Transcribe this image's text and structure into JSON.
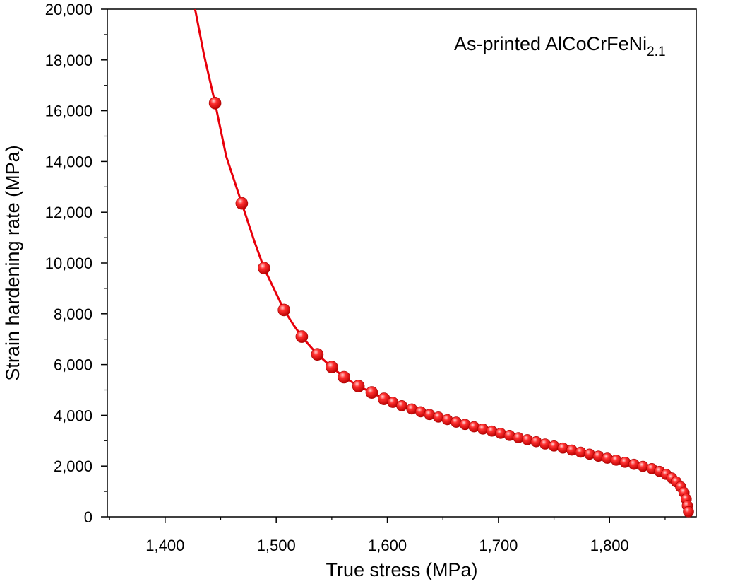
{
  "chart_data": {
    "type": "line",
    "title": "",
    "xlabel": "True stress (MPa)",
    "ylabel": "Strain hardening rate (MPa)",
    "annotation": {
      "text": "As-printed AlCoCrFeNi",
      "subscript": "2.1"
    },
    "xlim": [
      1348,
      1878
    ],
    "ylim": [
      0,
      20000
    ],
    "x_ticks": [
      1400,
      1500,
      1600,
      1700,
      1800
    ],
    "x_tick_labels": [
      "1,400",
      "1,500",
      "1,600",
      "1,700",
      "1,800"
    ],
    "y_ticks": [
      0,
      2000,
      4000,
      6000,
      8000,
      10000,
      12000,
      14000,
      16000,
      18000,
      20000
    ],
    "y_tick_labels": [
      "0",
      "2,000",
      "4,000",
      "6,000",
      "8,000",
      "10,000",
      "12,000",
      "14,000",
      "16,000",
      "18,000",
      "20,000"
    ],
    "grid": false,
    "legend": "none",
    "series": [
      {
        "color": "#e8000b",
        "line_x": [
          1427,
          1435,
          1445,
          1455,
          1469,
          1480,
          1489,
          1500,
          1507,
          1515,
          1523,
          1537,
          1550,
          1561,
          1574,
          1586,
          1597,
          1610,
          1623,
          1640,
          1660,
          1680,
          1700,
          1720,
          1740,
          1760,
          1780,
          1800,
          1820,
          1835,
          1845,
          1852,
          1858,
          1862,
          1865,
          1867,
          1869,
          1870,
          1871
        ],
        "line_y": [
          20000,
          18200,
          16300,
          14200,
          12350,
          10900,
          9800,
          8800,
          8150,
          7600,
          7100,
          6400,
          5900,
          5500,
          5150,
          4900,
          4650,
          4420,
          4220,
          3980,
          3720,
          3490,
          3270,
          3060,
          2840,
          2640,
          2440,
          2250,
          2060,
          1900,
          1750,
          1580,
          1380,
          1170,
          980,
          780,
          560,
          380,
          200
        ],
        "marker_x": [
          1445,
          1469,
          1489,
          1507,
          1523,
          1537,
          1550,
          1561,
          1574,
          1586,
          1597,
          1605,
          1613,
          1622,
          1630,
          1638,
          1646,
          1654,
          1662,
          1670,
          1678,
          1686,
          1694,
          1702,
          1710,
          1718,
          1726,
          1734,
          1742,
          1750,
          1758,
          1766,
          1774,
          1782,
          1790,
          1798,
          1806,
          1814,
          1822,
          1830,
          1838,
          1845,
          1851,
          1856,
          1860,
          1864,
          1867,
          1869,
          1870,
          1871
        ],
        "marker_y": [
          16300,
          12350,
          9800,
          8150,
          7100,
          6400,
          5900,
          5500,
          5150,
          4900,
          4650,
          4510,
          4380,
          4250,
          4140,
          4030,
          3930,
          3830,
          3730,
          3640,
          3550,
          3460,
          3380,
          3290,
          3210,
          3120,
          3040,
          2960,
          2870,
          2790,
          2710,
          2630,
          2550,
          2470,
          2390,
          2310,
          2230,
          2150,
          2070,
          1990,
          1900,
          1790,
          1670,
          1530,
          1380,
          1180,
          960,
          700,
          440,
          200
        ]
      }
    ]
  }
}
